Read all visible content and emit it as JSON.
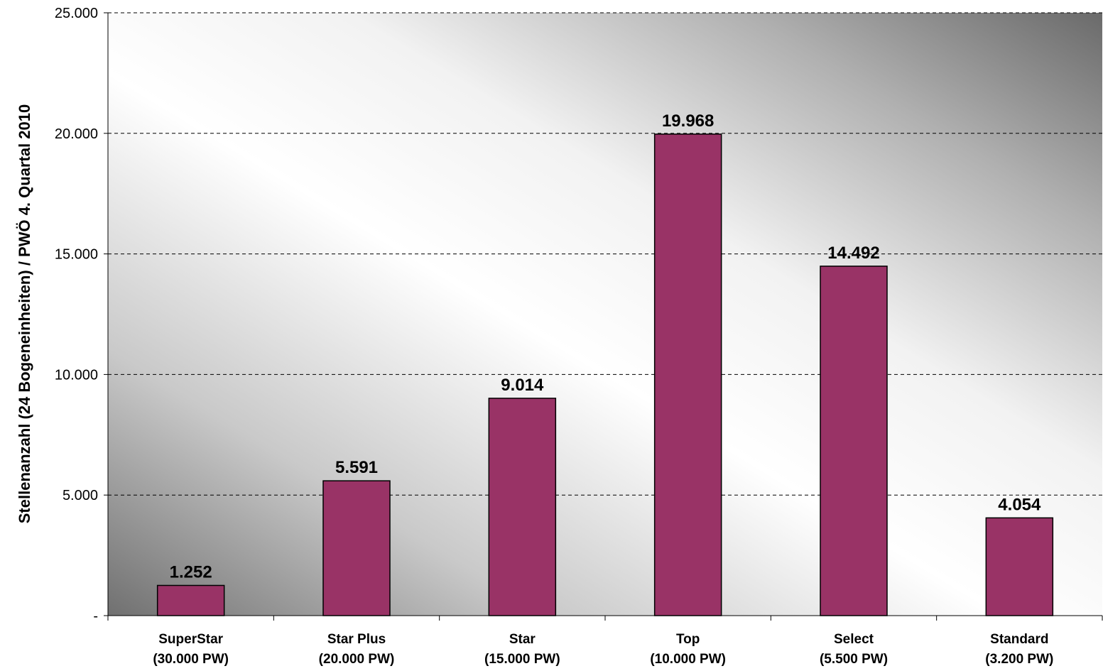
{
  "chart_data": {
    "type": "bar",
    "title": "",
    "xlabel": "",
    "ylabel": "Stellenanzahl (24 Bogeneinheiten) / PWÖ 4. Quartal 2010",
    "categories": [
      [
        "SuperStar",
        "(30.000 PW)"
      ],
      [
        "Star Plus",
        "(20.000 PW)"
      ],
      [
        "Star",
        "(15.000 PW)"
      ],
      [
        "Top",
        "(10.000 PW)"
      ],
      [
        "Select",
        "(5.500 PW)"
      ],
      [
        "Standard",
        "(3.200 PW)"
      ]
    ],
    "values": [
      1252,
      5591,
      9014,
      19968,
      14492,
      4054
    ],
    "data_labels": [
      "1.252",
      "5.591",
      "9.014",
      "19.968",
      "14.492",
      "4.054"
    ],
    "ylim": [
      0,
      25000
    ],
    "yticks": [
      0,
      5000,
      10000,
      15000,
      20000,
      25000
    ],
    "ytick_labels": [
      "-",
      "5.000",
      "10.000",
      "15.000",
      "20.000",
      "25.000"
    ],
    "grid": true,
    "legend": "none",
    "colors": {
      "bar": "#993366",
      "bar_border": "#000000",
      "gridline": "#000000",
      "background_light": "#ffffff",
      "background_dark": "#707070"
    }
  }
}
